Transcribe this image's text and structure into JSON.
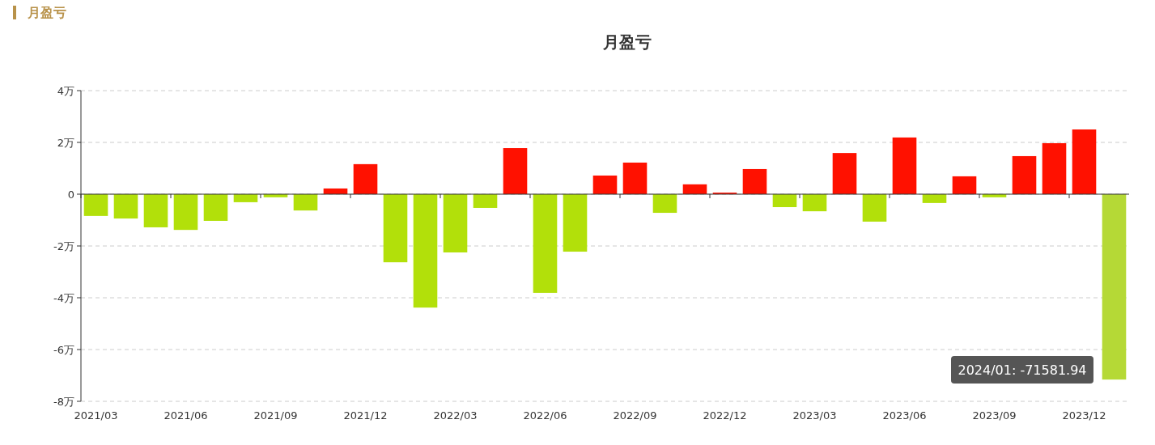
{
  "chart_data": {
    "type": "bar",
    "title": "月盈亏",
    "annotations": [
      "月盈亏",
      "2024/01: -71581.94"
    ],
    "categories": [
      "2021/03",
      null,
      null,
      "2021/06",
      null,
      null,
      "2021/09",
      null,
      null,
      "2021/12",
      null,
      null,
      "2022/03",
      null,
      null,
      "2022/06",
      null,
      null,
      "2022/09",
      null,
      null,
      "2022/12",
      null,
      null,
      "2023/03",
      null,
      null,
      "2023/06",
      null,
      null,
      "2023/09",
      null,
      null,
      "2023/12",
      null
    ],
    "values": [
      -0.84,
      -0.94,
      -1.28,
      -1.38,
      -1.03,
      -0.31,
      -0.12,
      -0.63,
      0.22,
      1.16,
      -2.63,
      -4.38,
      -2.25,
      -0.53,
      1.78,
      -3.81,
      -2.22,
      0.72,
      1.22,
      -0.72,
      0.38,
      0.06,
      0.97,
      -0.5,
      -0.66,
      1.59,
      -1.06,
      2.19,
      -0.34,
      0.69,
      -0.12,
      1.47,
      1.97,
      2.5,
      -7.16
    ],
    "colors": [
      "#b2e00a",
      "#b2e00a",
      "#b2e00a",
      "#b2e00a",
      "#b2e00a",
      "#b2e00a",
      "#b2e00a",
      "#b2e00a",
      "#ff1100",
      "#ff1100",
      "#b2e00a",
      "#b2e00a",
      "#b2e00a",
      "#b2e00a",
      "#ff1100",
      "#b2e00a",
      "#b2e00a",
      "#ff1100",
      "#ff1100",
      "#b2e00a",
      "#ff1100",
      "#ff1100",
      "#ff1100",
      "#b2e00a",
      "#b2e00a",
      "#ff1100",
      "#b2e00a",
      "#ff1100",
      "#b2e00a",
      "#ff1100",
      "#b2e00a",
      "#ff1100",
      "#ff1100",
      "#ff1100",
      "#b5d936"
    ],
    "ylim": [
      -8,
      4
    ],
    "yticks": [
      {
        "value": 4,
        "label": "4万"
      },
      {
        "value": 2,
        "label": "2万"
      },
      0,
      {
        "value": -2,
        "label": "-2万"
      },
      {
        "value": -4,
        "label": "-4万"
      },
      {
        "value": -6,
        "label": "-6万"
      },
      {
        "value": -8,
        "label": "-8万"
      }
    ],
    "grid": "y"
  }
}
